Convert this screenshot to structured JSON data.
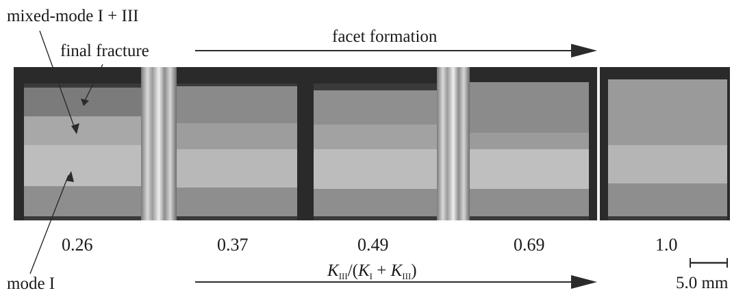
{
  "labels": {
    "mixed_mode": "mixed-mode I + III",
    "final_fracture": "final fracture",
    "facet_formation": "facet formation",
    "mode_one": "mode I",
    "scale_bar": "5.0 mm"
  },
  "ratios": [
    "0.26",
    "0.37",
    "0.49",
    "0.69",
    "1.0"
  ],
  "axis_label": {
    "k": "K",
    "sub_iii": "III",
    "sub_i": "I",
    "open": "/(",
    "plus": " + ",
    "close": ")"
  },
  "colors": {
    "arrow": "#2b2b2b",
    "strip_background": "#2a2a2a",
    "bottom_band": "#8e8e8e"
  }
}
